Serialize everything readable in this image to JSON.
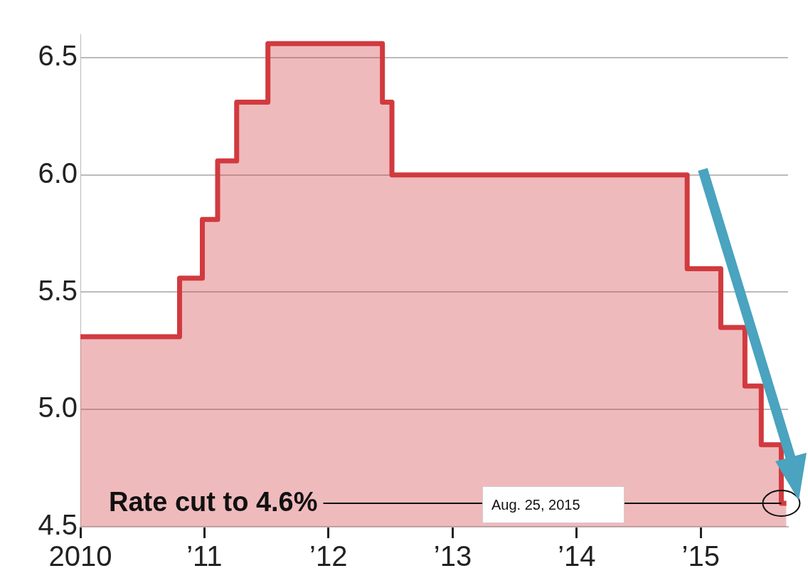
{
  "chart_data": {
    "type": "area",
    "x": [
      "2010-01-01",
      "2010-10-20",
      "2010-10-20",
      "2010-12-26",
      "2010-12-26",
      "2011-02-09",
      "2011-02-09",
      "2011-04-06",
      "2011-04-06",
      "2011-07-07",
      "2011-07-07",
      "2012-06-08",
      "2012-06-08",
      "2012-07-06",
      "2012-07-06",
      "2014-11-22",
      "2014-11-22",
      "2015-03-01",
      "2015-03-01",
      "2015-05-11",
      "2015-05-11",
      "2015-06-28",
      "2015-06-28",
      "2015-08-26",
      "2015-08-26",
      "2015-09-10"
    ],
    "series": [
      {
        "color": "#d13a3f",
        "values": [
          5.31,
          5.31,
          5.56,
          5.56,
          5.81,
          5.81,
          6.06,
          6.06,
          6.31,
          6.31,
          6.56,
          6.56,
          6.31,
          6.31,
          6.0,
          6.0,
          5.6,
          5.6,
          5.35,
          5.35,
          5.1,
          5.1,
          4.85,
          4.85,
          4.6,
          4.6
        ]
      }
    ],
    "xlim": [
      "2010-01-01",
      "2015-09-15"
    ],
    "xticks": [
      {
        "value": "2010",
        "label": "2010"
      },
      {
        "value": "2011",
        "label": "’11"
      },
      {
        "value": "2012",
        "label": "’12"
      },
      {
        "value": "2013",
        "label": "’13"
      },
      {
        "value": "2014",
        "label": "’14"
      },
      {
        "value": "2015",
        "label": "’15"
      }
    ],
    "ylim": [
      4.5,
      6.6
    ],
    "yticks": [
      {
        "value": 4.5,
        "label": "4.5"
      },
      {
        "value": 5.0,
        "label": "5.0"
      },
      {
        "value": 5.5,
        "label": "5.5"
      },
      {
        "value": 6.0,
        "label": "6.0"
      },
      {
        "value": 6.5,
        "label": "6.5"
      }
    ],
    "grid": "y",
    "annotations": [
      {
        "text": "Rate cut to 4.6%",
        "x": "2015-08-26",
        "y": 4.6
      },
      "Aug. 25, 2015"
    ]
  }
}
